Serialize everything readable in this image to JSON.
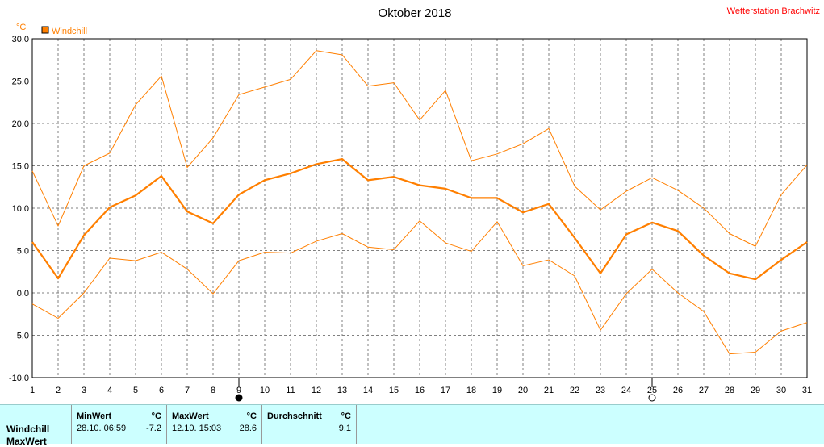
{
  "title": "Oktober 2018",
  "station": "Wetterstation Brachwitz",
  "unit": "°C",
  "colors": {
    "series": "#ff7f00",
    "grid": "#808080",
    "table_bg": "#ccffff"
  },
  "moon_icons": [
    {
      "day": 9,
      "icon": "full-moon-icon"
    },
    {
      "day": 25,
      "icon": "new-moon-icon"
    }
  ],
  "chart_data": {
    "type": "line",
    "title": "Oktober 2018",
    "ylabel": "°C",
    "ylim": [
      -10,
      30
    ],
    "yticks": [
      "30.0",
      "25.0",
      "20.0",
      "15.0",
      "10.0",
      "5.0",
      "0.0",
      "-5.0",
      "-10.0"
    ],
    "x": [
      1,
      2,
      3,
      4,
      5,
      6,
      7,
      8,
      9,
      10,
      11,
      12,
      13,
      14,
      15,
      16,
      17,
      18,
      19,
      20,
      21,
      22,
      23,
      24,
      25,
      26,
      27,
      28,
      29,
      30,
      31
    ],
    "grid": true,
    "legend": "top-left",
    "series": [
      {
        "name": "Windchill",
        "role": "mean",
        "values": [
          6.0,
          1.7,
          6.8,
          10.1,
          11.5,
          13.8,
          9.6,
          8.2,
          11.6,
          13.3,
          14.1,
          15.2,
          15.8,
          13.3,
          13.7,
          12.7,
          12.3,
          11.2,
          11.2,
          9.5,
          10.5,
          6.5,
          2.3,
          6.9,
          8.3,
          7.3,
          4.4,
          2.3,
          1.6,
          3.9,
          6.0
        ]
      },
      {
        "role": "max",
        "values": [
          14.4,
          7.9,
          15.0,
          16.5,
          22.2,
          25.6,
          14.8,
          18.3,
          23.4,
          24.3,
          25.2,
          28.6,
          28.1,
          24.4,
          24.8,
          20.4,
          23.9,
          15.6,
          16.4,
          17.6,
          19.4,
          12.6,
          9.8,
          12.0,
          13.6,
          12.1,
          10.0,
          7.0,
          5.5,
          11.6,
          15.1
        ]
      },
      {
        "role": "min",
        "values": [
          -1.3,
          -3.0,
          0.0,
          4.1,
          3.8,
          4.8,
          2.8,
          -0.1,
          3.8,
          4.8,
          4.7,
          6.1,
          7.0,
          5.4,
          5.1,
          8.5,
          5.9,
          4.9,
          8.4,
          3.2,
          3.9,
          2.0,
          -4.4,
          -0.1,
          2.8,
          0.0,
          -2.2,
          -7.2,
          -7.0,
          -4.5,
          -3.5
        ]
      }
    ]
  },
  "table": {
    "headers": {
      "min": "MinWert",
      "max": "MaxWert",
      "avg": "Durchschnitt",
      "unit_min": "°C",
      "unit_max": "°C",
      "unit_avg": "°C"
    },
    "rows": [
      {
        "label": "Windchill",
        "min_time": "28.10.  06:59",
        "min_val": "-7.2",
        "max_time": "12.10.  15:03",
        "max_val": "28.6",
        "avg_val": "9.1"
      },
      {
        "label": "MaxWert"
      }
    ]
  }
}
